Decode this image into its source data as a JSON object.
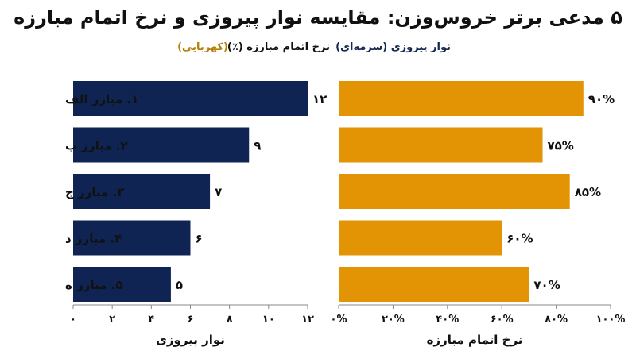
{
  "title": "۵ مدعی برتر خروس‌وزن: مقایسه نوار پیروزی و نرخ اتمام مبارزه",
  "legend": {
    "left_series": "نوار پیروزی (سرمه‌ای)",
    "right_series_title": "نرخ اتمام مبارزه (٪)",
    "right_series_color_note": "(کهربایی)"
  },
  "colors": {
    "navy": "#0f2453",
    "amber": "#e29405",
    "axis": "#888888"
  },
  "chart_data": [
    {
      "type": "bar",
      "orientation": "horizontal",
      "categories": [
        "۱. مبارز الف",
        "۲. مبارز ب",
        "۳. مبارز چ",
        "۴. مبارز د",
        "۵. مبارز ه"
      ],
      "values": [
        12,
        9,
        7,
        6,
        5
      ],
      "value_labels": [
        "۱۲",
        "۹",
        "۷",
        "۶",
        "۵"
      ],
      "xlabel": "نوار پیروزی",
      "xlim": [
        0,
        12
      ],
      "ticks": [
        0,
        2,
        4,
        6,
        8,
        10,
        12
      ],
      "tick_labels": [
        "۰",
        "۲",
        "۴",
        "۶",
        "۸",
        "۱۰",
        "۱۲"
      ],
      "color": "#0f2453"
    },
    {
      "type": "bar",
      "orientation": "horizontal",
      "categories": [
        "۱. مبارز الف",
        "۲. مبارز ب",
        "۳. مبارز چ",
        "۴. مبارز د",
        "۵. مبارز ه"
      ],
      "values": [
        90,
        75,
        85,
        60,
        70
      ],
      "value_labels": [
        "۹۰%",
        "۷۵%",
        "۸۵%",
        "۶۰%",
        "۷۰%"
      ],
      "xlabel": "نرخ اتمام مبارزه",
      "xlim": [
        0,
        100
      ],
      "ticks": [
        0,
        20,
        40,
        60,
        80,
        100
      ],
      "tick_labels": [
        "۰%",
        "۲۰%",
        "۴۰%",
        "۶۰%",
        "۸۰%",
        "۱۰۰%"
      ],
      "color": "#e29405"
    }
  ]
}
